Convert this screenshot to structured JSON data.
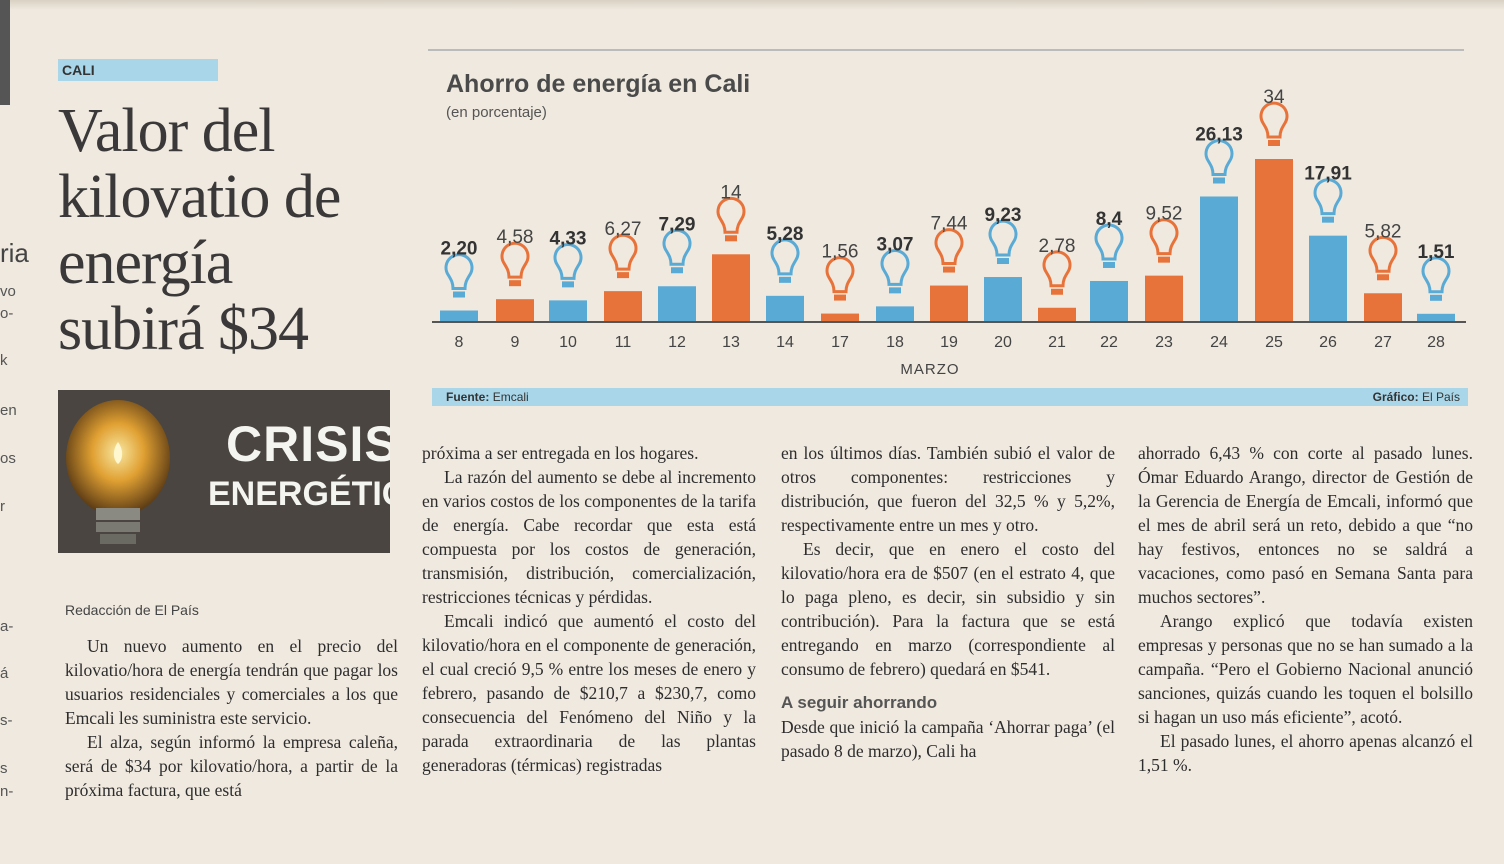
{
  "section": "CALI",
  "headline": "Valor del kilovatio de energía subirá $34",
  "crisis_box": {
    "line1": "CRISIS",
    "line2": "ENERGÉTICA"
  },
  "byline": "Redacción de El País",
  "edge_fragments": [
    "ria",
    "vo",
    "o-",
    "k",
    "en",
    "os",
    "r",
    "a-",
    "á",
    "s-",
    "s",
    "n-"
  ],
  "chart": {
    "title": "Ahorro de energía en Cali",
    "subtitle": "(en porcentaje)",
    "source_label": "Fuente:",
    "source": "Emcali",
    "credit_label": "Gráfico:",
    "credit": "El País",
    "colors": {
      "blue": "#5aaad6",
      "orange": "#e8733a"
    }
  },
  "chart_data": {
    "type": "bar",
    "xlabel": "MARZO",
    "categories": [
      "8",
      "9",
      "10",
      "11",
      "12",
      "13",
      "14",
      "17",
      "18",
      "19",
      "20",
      "21",
      "22",
      "23",
      "24",
      "25",
      "26",
      "27",
      "28"
    ],
    "values": [
      2.2,
      4.58,
      4.33,
      6.27,
      7.29,
      14,
      5.28,
      1.56,
      3.07,
      7.44,
      9.23,
      2.78,
      8.4,
      9.52,
      26.13,
      34,
      17.91,
      5.82,
      1.51
    ],
    "labels": [
      "2,20",
      "4,58",
      "4,33",
      "6,27",
      "7,29",
      "14",
      "5,28",
      "1,56",
      "3,07",
      "7,44",
      "9,23",
      "2,78",
      "8,4",
      "9,52",
      "26,13",
      "34",
      "17,91",
      "5,82",
      "1,51"
    ],
    "bar_colors": [
      "blue",
      "orange",
      "blue",
      "orange",
      "blue",
      "orange",
      "blue",
      "orange",
      "blue",
      "orange",
      "blue",
      "orange",
      "blue",
      "orange",
      "blue",
      "orange",
      "blue",
      "orange",
      "blue"
    ],
    "label_bold": [
      true,
      false,
      true,
      false,
      true,
      false,
      true,
      false,
      true,
      false,
      true,
      false,
      true,
      false,
      true,
      false,
      true,
      false,
      true
    ],
    "ylim": [
      0,
      34
    ]
  },
  "columns": {
    "col1": [
      "Un nuevo aumento en el precio del kilovatio/hora de energía tendrán que pagar los usuarios residenciales y comerciales a los que Emcali les suministra este servicio.",
      "El alza, según informó la empresa caleña, será de $34 por kilovatio/hora, a partir de la próxima factura, que está"
    ],
    "col2": [
      "próxima a ser entregada en los hogares.",
      "La razón del aumento se debe al incremento en varios costos de los componentes de la tarifa de energía. Cabe recordar que esta está compuesta por los costos de generación, transmisión, distribución, comercialización, restricciones técnicas y pérdidas.",
      "Emcali indicó que aumentó el costo del kilovatio/hora en el componente de generación, el cual creció 9,5 % entre los meses de enero y febrero, pasando de $210,7 a $230,7, como consecuencia del Fenómeno del Niño y la parada extraordinaria de las plantas generadoras (térmicas) registradas"
    ],
    "col3": [
      "en los últimos días. También subió el valor de otros componentes: restricciones y distribución, que fueron del 32,5 % y 5,2%, respectivamente entre un mes y otro.",
      "Es decir, que en enero el costo del kilovatio/hora era de $507 (en el estrato 4, que lo paga pleno, es decir, sin subsidio y sin contribución). Para la factura que se está entregando en marzo (correspondiente al consumo de febrero) quedará en $541."
    ],
    "col3_subhead": "A seguir ahorrando",
    "col3_after": "Desde que inició la campaña ‘Ahorrar paga’ (el pasado 8 de marzo), Cali ha",
    "col4": [
      "ahorrado 6,43 % con corte al pasado lunes. Ómar Eduardo Arango, director de Gestión de la Gerencia de Energía de Emcali, informó que el mes de abril será un reto, debido a que “no hay festivos, entonces no se saldrá a vacaciones, como pasó en Semana Santa para muchos sectores”.",
      "Arango explicó que todavía existen empresas y personas que no se han sumado a la campaña. “Pero el Gobierno Nacional anunció sanciones, quizás cuando les toquen el bolsillo si hagan un uso más eficiente”, acotó.",
      "El pasado lunes, el ahorro apenas alcanzó el 1,51 %."
    ]
  }
}
